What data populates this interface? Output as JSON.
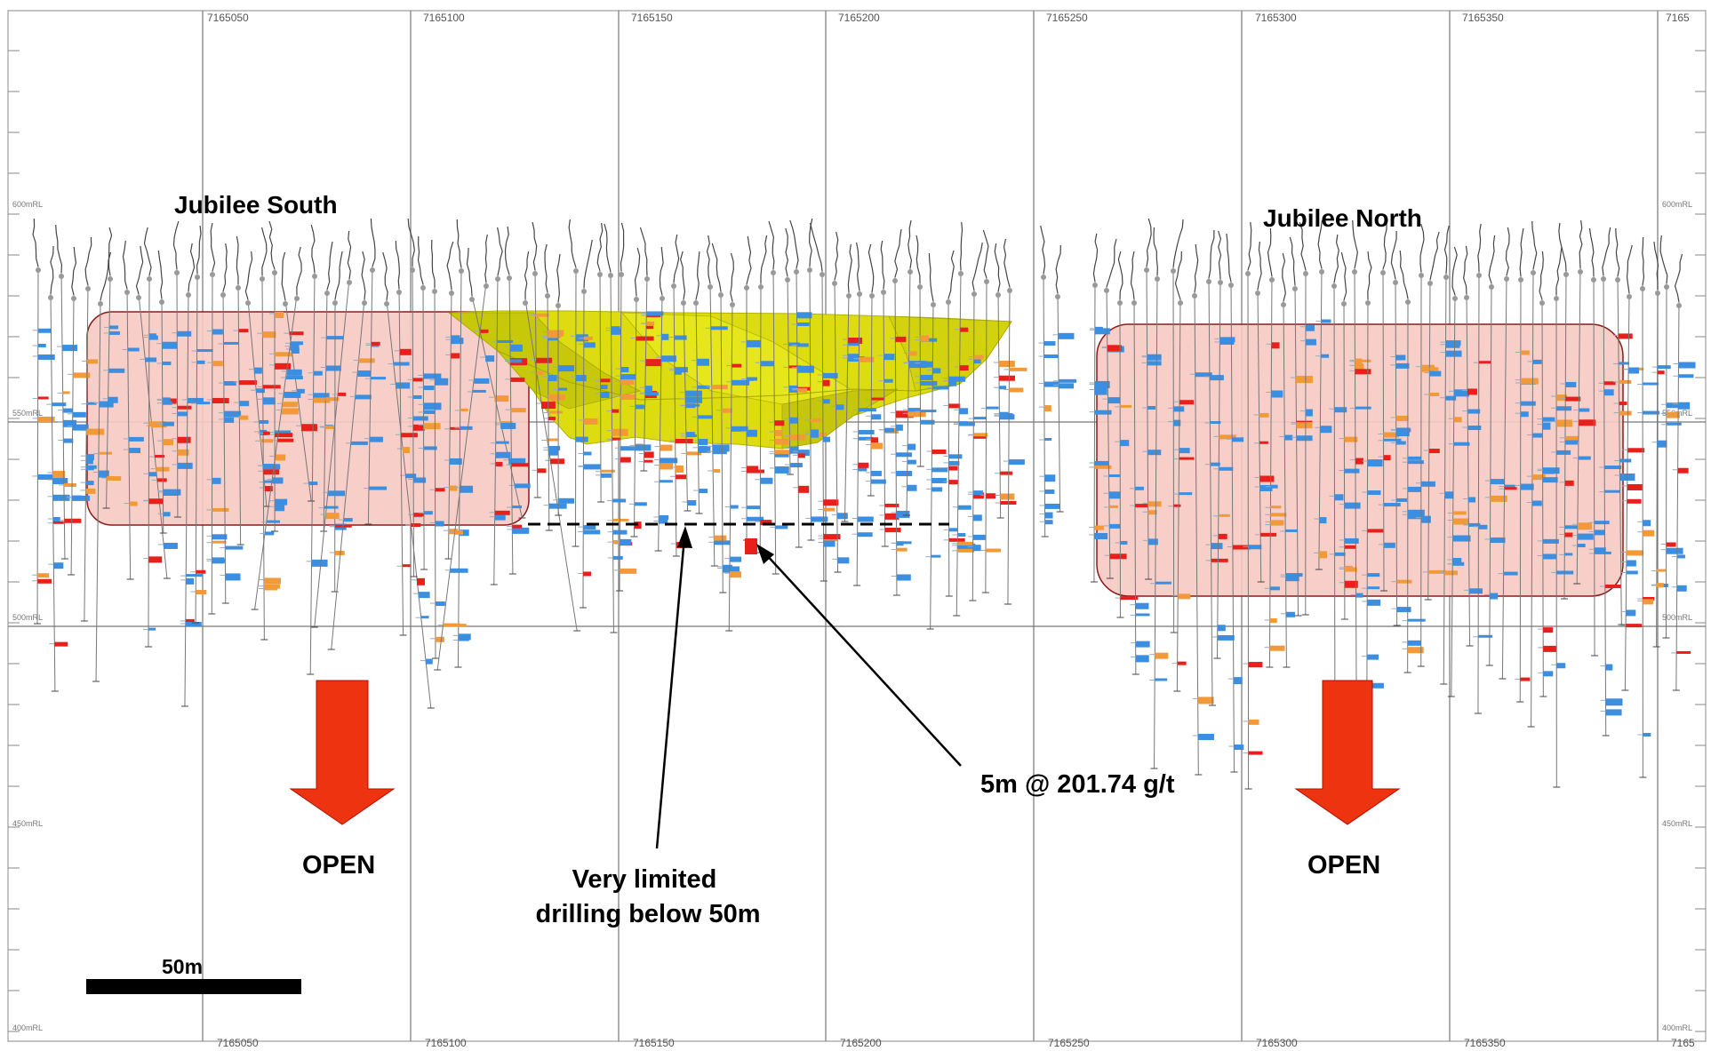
{
  "eastings_top": [
    "7165050",
    "7165100",
    "7165150",
    "7165200",
    "7165250",
    "7165300",
    "7165350",
    "7165"
  ],
  "eastings_bottom": [
    "7165050",
    "7165100",
    "7165150",
    "7165200",
    "7165250",
    "7165300",
    "7165350",
    "7165"
  ],
  "rl_labels": [
    "600mRL",
    "550mRL",
    "500mRL",
    "450mRL",
    "400mRL"
  ],
  "zones": {
    "south": "Jubilee South",
    "north": "Jubilee North"
  },
  "open_south": "OPEN",
  "open_north": "OPEN",
  "callouts": {
    "limited_line1": "Very limited",
    "limited_line2": "drilling below 50m",
    "intercept": "5m @ 201.74 g/t"
  },
  "scale_bar": {
    "label": "50m",
    "length_m": 50
  },
  "colors": {
    "zone_fill": "#f6c9c2",
    "zone_border": "#8a1c1c",
    "pit_fill": "#dcdc10",
    "arrow": "#ee3311",
    "assay_low": "#3b8ee0",
    "assay_mid": "#f29a3a",
    "assay_high": "#e8201c"
  }
}
